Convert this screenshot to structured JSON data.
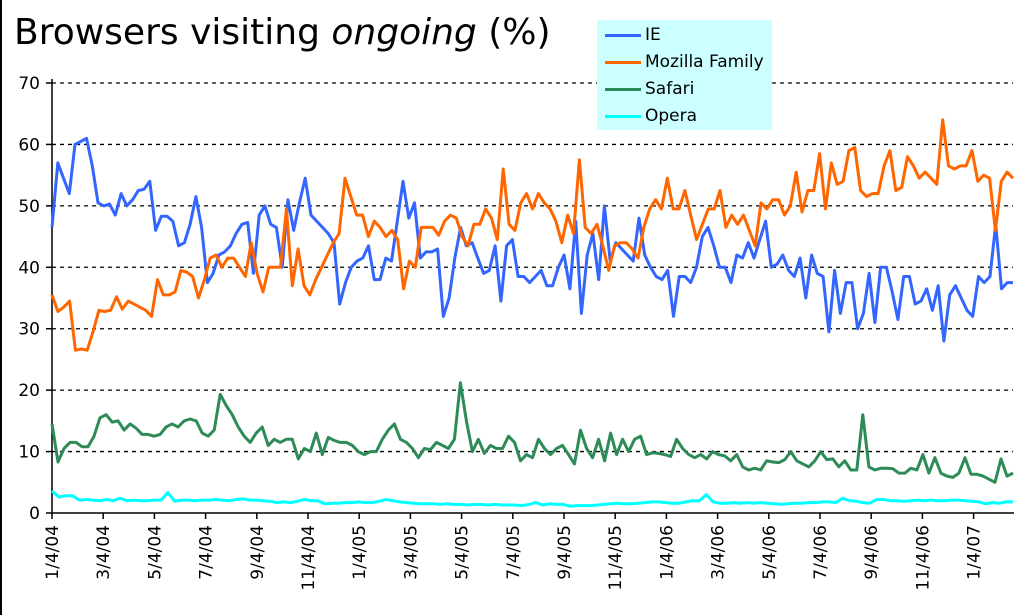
{
  "chart_data": {
    "type": "line",
    "title_prefix": "Browsers visiting ",
    "title_italic": "ongoing",
    "title_suffix": " (%)",
    "xlabel": "",
    "ylabel": "",
    "ylim": [
      0,
      70
    ],
    "yticks": [
      "0",
      "10",
      "20",
      "30",
      "40",
      "50",
      "60",
      "70"
    ],
    "grid": "horizontal dashed",
    "legend_position": "top-right",
    "x_start": "1/4/04",
    "x_interval": "weekly",
    "xticks": [
      "1/4/04",
      "3/4/04",
      "5/4/04",
      "7/4/04",
      "9/4/04",
      "11/4/04",
      "1/4/05",
      "3/4/05",
      "5/4/05",
      "7/4/05",
      "9/4/05",
      "11/4/05",
      "1/4/06",
      "3/4/06",
      "5/4/06",
      "7/4/06",
      "9/4/06",
      "11/4/06",
      "1/4/07"
    ],
    "series": [
      {
        "name": "IE",
        "color": "#3366ff",
        "values": [
          46.5,
          57,
          54.5,
          52,
          60,
          60.5,
          61,
          56.5,
          50.5,
          50,
          50.3,
          48.5,
          52,
          50,
          51,
          52.5,
          52.7,
          54,
          46,
          48.3,
          48.3,
          47.5,
          43.5,
          44,
          47,
          51.5,
          46.5,
          37.5,
          39,
          42,
          42.5,
          43.5,
          45.5,
          47,
          47.3,
          39,
          48.5,
          50,
          47,
          46.5,
          40,
          51,
          46,
          50.5,
          54.5,
          48.5,
          47.5,
          46.5,
          45.5,
          44,
          34,
          37.5,
          40,
          41,
          41.5,
          43.5,
          38,
          38,
          41.5,
          41,
          47.5,
          54,
          48,
          50.5,
          41.5,
          42.5,
          42.5,
          43,
          32,
          35,
          41.5,
          46.5,
          43.5,
          44,
          41.5,
          39,
          39.5,
          43.5,
          34.5,
          43.5,
          44.5,
          38.5,
          38.5,
          37.5,
          38.5,
          39.5,
          37,
          37,
          40,
          42,
          36.5,
          47.5,
          32.5,
          42,
          45.5,
          38,
          50,
          41,
          44,
          43,
          42,
          41,
          48,
          42,
          40,
          38.5,
          38,
          39.5,
          32,
          38.5,
          38.5,
          37.5,
          40,
          45,
          46.5,
          43.5,
          40,
          40,
          37.5,
          42,
          41.5,
          44,
          41.5,
          44.5,
          47.5,
          40,
          40.5,
          42,
          39.5,
          38.5,
          41.5,
          35,
          42,
          39,
          38.5,
          29.5,
          39.5,
          32.5,
          37.5,
          37.5,
          30,
          32.5,
          39,
          31,
          40,
          40,
          36,
          31.5,
          38.5,
          38.5,
          34,
          34.5,
          36.5,
          33,
          37,
          28,
          35.5,
          37,
          35,
          33,
          32,
          38.5,
          37.5,
          38.5,
          47,
          36.5,
          37.5,
          37.5
        ]
      },
      {
        "name": "Mozilla Family",
        "color": "#ff6600",
        "values": [
          35.5,
          32.8,
          33.5,
          34.5,
          26.5,
          26.7,
          26.5,
          29.5,
          33,
          32.8,
          33,
          35.2,
          33.2,
          34.5,
          34,
          33.5,
          33,
          32,
          38,
          35.5,
          35.5,
          36,
          39.5,
          39.2,
          38.5,
          35,
          38,
          41.5,
          42,
          40,
          41.5,
          41.5,
          40,
          38.5,
          44,
          39,
          36,
          40,
          40,
          40,
          49.5,
          37,
          43,
          37,
          35.5,
          38,
          40,
          42,
          44,
          45.5,
          54.5,
          51.5,
          48.5,
          48.5,
          45,
          47.5,
          46.5,
          45,
          46,
          44.5,
          36.5,
          41,
          40,
          46.5,
          46.5,
          46.5,
          45.2,
          47.5,
          48.5,
          48,
          45,
          43.5,
          47,
          47,
          49.5,
          48,
          44.5,
          56,
          47,
          46,
          50.5,
          52,
          49.5,
          52,
          50.5,
          49.5,
          47.5,
          44,
          48.5,
          45.5,
          57.5,
          46.5,
          45.5,
          47,
          43.5,
          39.5,
          43.5,
          44,
          44,
          43,
          41.5,
          46.5,
          49.5,
          51,
          49.5,
          54.5,
          49.5,
          49.5,
          52.5,
          48.5,
          44.5,
          47,
          49.5,
          49.5,
          52.5,
          46.5,
          48.5,
          47,
          48.5,
          46,
          43.5,
          50.5,
          49.5,
          51,
          51,
          48.5,
          50,
          55.5,
          49,
          52.5,
          52.5,
          58.5,
          49.5,
          57,
          53.5,
          54,
          59,
          59.5,
          52.5,
          51.5,
          52,
          52,
          56.5,
          59,
          52.5,
          53,
          58,
          56.5,
          54.5,
          55.5,
          54.5,
          53.5,
          64,
          56.5,
          56,
          56.5,
          56.5,
          59,
          54,
          55,
          54.5,
          46,
          54,
          55.5,
          54.5
        ]
      },
      {
        "name": "Safari",
        "color": "#2e8b57",
        "values": [
          14.5,
          8.3,
          10.5,
          11.5,
          11.5,
          10.8,
          10.8,
          12.5,
          15.5,
          16,
          14.8,
          15,
          13.5,
          14.5,
          13.8,
          12.8,
          12.8,
          12.5,
          12.8,
          14,
          14.5,
          14,
          15,
          15.3,
          15,
          13,
          12.5,
          13.5,
          19.3,
          17.5,
          16,
          14,
          12.5,
          11.5,
          13,
          14,
          11,
          12,
          11.5,
          12,
          12,
          8.8,
          10.5,
          10,
          13,
          9.5,
          12.3,
          11.8,
          11.5,
          11.5,
          11,
          10,
          9.5,
          10,
          10,
          12,
          13.5,
          14.5,
          12,
          11.5,
          10.5,
          9,
          10.5,
          10.3,
          11.5,
          11,
          10.5,
          12,
          21.2,
          15,
          10,
          12,
          9.7,
          11,
          10.5,
          10.5,
          12.5,
          11.5,
          8.5,
          9.5,
          9,
          12,
          10.5,
          9.5,
          10.5,
          11,
          9.5,
          8,
          13.5,
          10.5,
          9,
          12,
          8.5,
          13,
          9.5,
          12,
          10,
          12,
          12.5,
          9.5,
          9.8,
          9.7,
          9.5,
          9.2,
          12,
          10.5,
          9.5,
          9,
          9.5,
          8.8,
          10,
          9.5,
          9.3,
          8.5,
          9.5,
          7.5,
          7,
          7.3,
          7,
          8.5,
          8.3,
          8.2,
          8.7,
          10,
          8.5,
          8,
          7.5,
          8.5,
          10,
          8.7,
          8.8,
          7.5,
          8.5,
          7,
          7,
          16,
          7.5,
          7,
          7.3,
          7.3,
          7.2,
          6.5,
          6.5,
          7.3,
          7,
          9.5,
          6.5,
          9,
          6.5,
          6,
          5.8,
          6.5,
          9,
          6.3,
          6.3,
          6,
          5.5,
          5,
          8.8,
          6,
          6.5
        ]
      },
      {
        "name": "Opera",
        "color": "#00ffff",
        "values": [
          3.6,
          2.6,
          2.8,
          2.8,
          2.1,
          2.2,
          2.1,
          2.0,
          2.2,
          2.0,
          2.4,
          2.0,
          2.1,
          2.0,
          2.0,
          2.1,
          2.1,
          3.3,
          1.9,
          2.1,
          2.1,
          2.0,
          2.1,
          2.1,
          2.2,
          2.1,
          2.0,
          2.2,
          2.3,
          2.1,
          2.1,
          2.0,
          1.9,
          1.7,
          1.8,
          1.7,
          1.9,
          2.2,
          2.0,
          2.0,
          1.5,
          1.6,
          1.6,
          1.7,
          1.7,
          1.8,
          1.7,
          1.7,
          1.9,
          2.2,
          2.0,
          1.8,
          1.7,
          1.6,
          1.5,
          1.5,
          1.5,
          1.4,
          1.5,
          1.4,
          1.4,
          1.3,
          1.4,
          1.4,
          1.3,
          1.4,
          1.3,
          1.3,
          1.3,
          1.2,
          1.4,
          1.7,
          1.3,
          1.5,
          1.4,
          1.4,
          1.1,
          1.2,
          1.2,
          1.2,
          1.3,
          1.4,
          1.5,
          1.6,
          1.5,
          1.5,
          1.6,
          1.7,
          1.8,
          1.8,
          1.7,
          1.6,
          1.6,
          1.8,
          2.0,
          2.0,
          3.0,
          1.8,
          1.6,
          1.6,
          1.7,
          1.6,
          1.7,
          1.6,
          1.7,
          1.6,
          1.5,
          1.4,
          1.5,
          1.6,
          1.6,
          1.7,
          1.7,
          1.8,
          1.8,
          1.7,
          2.4,
          2.0,
          1.9,
          1.7,
          1.6,
          2.2,
          2.2,
          2.0,
          2.0,
          1.9,
          2.0,
          2.1,
          2.0,
          2.1,
          2.0,
          2.0,
          2.1,
          2.1,
          2.0,
          1.9,
          1.8,
          1.5,
          1.7,
          1.6,
          1.8,
          1.8
        ]
      }
    ]
  },
  "legend": {
    "items": [
      {
        "label": "IE",
        "color": "#3366ff"
      },
      {
        "label": "Mozilla Family",
        "color": "#ff6600"
      },
      {
        "label": "Safari",
        "color": "#2e8b57"
      },
      {
        "label": "Opera",
        "color": "#00ffff"
      }
    ]
  }
}
